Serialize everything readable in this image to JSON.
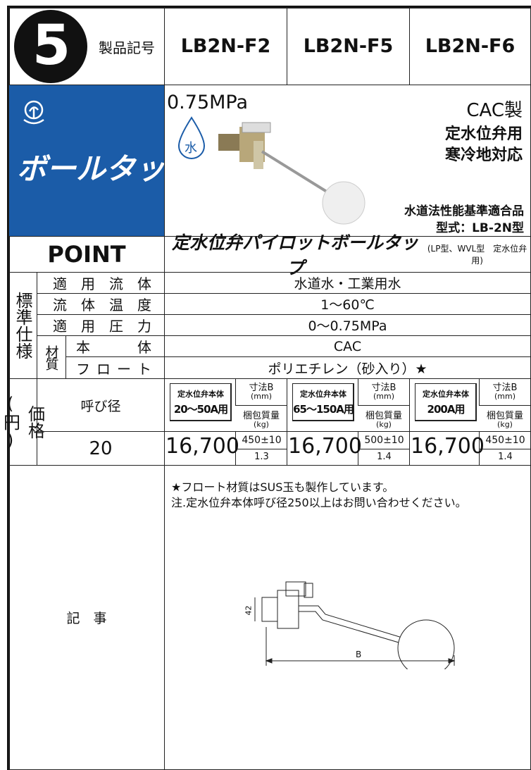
{
  "header": {
    "number": "5",
    "label": "製品記号",
    "models": [
      "LB2N-F2",
      "LB2N-F5",
      "LB2N-F6"
    ]
  },
  "product": {
    "category": "ボールタップ",
    "pressure": "0.75MPa",
    "water_icon": "水",
    "features": [
      "CAC製",
      "定水位弁用",
      "寒冷地対応"
    ],
    "certification": "水道法性能基準適合品",
    "model_type": "型式：LB-2N型"
  },
  "point": {
    "label": "POINT",
    "title": "定水位弁パイロットボールタップ",
    "note": "(LP型、WVL型　定水位弁用)"
  },
  "spec": {
    "group_label": "標準仕様",
    "material_label": "材質",
    "rows": [
      {
        "label": "適用流体",
        "value": "水道水・工業用水"
      },
      {
        "label": "流体温度",
        "value": "1〜60℃"
      },
      {
        "label": "適用圧力",
        "value": "0〜0.75MPa"
      },
      {
        "label": "本体",
        "value": "CAC"
      },
      {
        "label": "フロート",
        "value": "ポリエチレン（砂入り）★"
      }
    ]
  },
  "price": {
    "group_label": "価格(円)",
    "size_label": "呼び径",
    "size": "20",
    "dim_label": "寸法B",
    "dim_unit": "(mm)",
    "weight_label": "梱包質量",
    "weight_unit": "(kg)",
    "items": [
      {
        "body_label": "定水位弁本体",
        "body_size": "20〜50A用",
        "price": "16,700",
        "dim": "450±10",
        "weight": "1.3"
      },
      {
        "body_label": "定水位弁本体",
        "body_size": "65〜150A用",
        "price": "16,700",
        "dim": "500±10",
        "weight": "1.4"
      },
      {
        "body_label": "定水位弁本体",
        "body_size": "200A用",
        "price": "16,700",
        "dim": "450±10",
        "weight": "1.4"
      }
    ]
  },
  "notes": {
    "label": "記　事",
    "lines": [
      "★フロート材質はSUS玉も製作しています。",
      "注.定水位弁本体呼び径250以上はお問い合わせください。"
    ],
    "diagram": {
      "height": "42",
      "width": "B"
    }
  }
}
